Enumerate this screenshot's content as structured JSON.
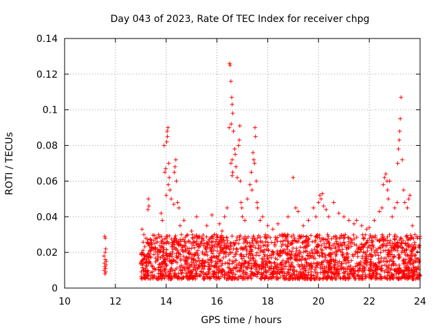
{
  "chart_data": {
    "type": "scatter",
    "title": "Day 043 of 2023, Rate Of TEC Index for receiver chpg",
    "xlabel": "GPS time / hours",
    "ylabel": "ROTI / TECUs",
    "xlim": [
      10,
      24
    ],
    "ylim": [
      0,
      0.14
    ],
    "x_ticks": [
      10,
      12,
      14,
      16,
      18,
      20,
      22,
      24
    ],
    "x_tick_labels": [
      "10",
      "12",
      "14",
      "16",
      "18",
      "20",
      "22",
      "24"
    ],
    "y_ticks": [
      0,
      0.02,
      0.04,
      0.06,
      0.08,
      0.1,
      0.12,
      0.14
    ],
    "y_tick_labels": [
      "0",
      "0.02",
      "0.04",
      "0.06",
      "0.08",
      "0.1",
      "0.12",
      "0.14"
    ],
    "grid": true,
    "marker": "+",
    "color": "#ff0000",
    "series": [
      {
        "name": "ROTI",
        "points": [
          [
            11.58,
            0.029
          ],
          [
            11.6,
            0.028
          ],
          [
            11.62,
            0.022
          ],
          [
            11.55,
            0.018
          ],
          [
            11.6,
            0.016
          ],
          [
            11.57,
            0.014
          ],
          [
            11.63,
            0.013
          ],
          [
            11.58,
            0.012
          ],
          [
            11.61,
            0.011
          ],
          [
            11.56,
            0.01
          ],
          [
            11.62,
            0.009
          ],
          [
            11.59,
            0.008
          ],
          [
            11.64,
            0.015
          ],
          [
            11.6,
            0.02
          ],
          [
            13.05,
            0.033
          ],
          [
            13.12,
            0.03
          ],
          [
            13.2,
            0.028
          ],
          [
            13.3,
            0.05
          ],
          [
            13.32,
            0.046
          ],
          [
            13.28,
            0.044
          ],
          [
            13.4,
            0.025
          ],
          [
            13.55,
            0.022
          ],
          [
            13.7,
            0.03
          ],
          [
            13.8,
            0.042
          ],
          [
            13.85,
            0.038
          ],
          [
            13.95,
            0.065
          ],
          [
            13.92,
            0.08
          ],
          [
            13.98,
            0.067
          ],
          [
            14.02,
            0.082
          ],
          [
            14.05,
            0.085
          ],
          [
            14.07,
            0.09
          ],
          [
            14.04,
            0.088
          ],
          [
            14.1,
            0.07
          ],
          [
            14.12,
            0.062
          ],
          [
            14.08,
            0.058
          ],
          [
            14.0,
            0.052
          ],
          [
            14.15,
            0.055
          ],
          [
            14.2,
            0.05
          ],
          [
            14.3,
            0.047
          ],
          [
            14.32,
            0.065
          ],
          [
            14.35,
            0.068
          ],
          [
            14.38,
            0.072
          ],
          [
            14.4,
            0.06
          ],
          [
            14.45,
            0.048
          ],
          [
            14.5,
            0.045
          ],
          [
            14.55,
            0.035
          ],
          [
            14.6,
            0.03
          ],
          [
            14.7,
            0.038
          ],
          [
            15.0,
            0.032
          ],
          [
            15.2,
            0.04
          ],
          [
            15.4,
            0.028
          ],
          [
            15.6,
            0.035
          ],
          [
            15.8,
            0.041
          ],
          [
            15.9,
            0.03
          ],
          [
            16.1,
            0.036
          ],
          [
            16.2,
            0.032
          ],
          [
            16.3,
            0.04
          ],
          [
            16.4,
            0.045
          ],
          [
            16.48,
            0.09
          ],
          [
            16.5,
            0.126
          ],
          [
            16.52,
            0.125
          ],
          [
            16.55,
            0.116
          ],
          [
            16.58,
            0.107
          ],
          [
            16.6,
            0.103
          ],
          [
            16.56,
            0.092
          ],
          [
            16.62,
            0.098
          ],
          [
            16.65,
            0.088
          ],
          [
            16.6,
            0.072
          ],
          [
            16.55,
            0.07
          ],
          [
            16.62,
            0.065
          ],
          [
            16.6,
            0.063
          ],
          [
            16.7,
            0.078
          ],
          [
            16.72,
            0.075
          ],
          [
            16.75,
            0.068
          ],
          [
            16.8,
            0.062
          ],
          [
            16.85,
            0.08
          ],
          [
            16.88,
            0.083
          ],
          [
            16.9,
            0.091
          ],
          [
            16.92,
            0.06
          ],
          [
            16.95,
            0.048
          ],
          [
            16.98,
            0.045
          ],
          [
            17.0,
            0.04
          ],
          [
            17.1,
            0.038
          ],
          [
            17.2,
            0.05
          ],
          [
            17.3,
            0.058
          ],
          [
            17.35,
            0.065
          ],
          [
            17.38,
            0.055
          ],
          [
            17.42,
            0.076
          ],
          [
            17.45,
            0.072
          ],
          [
            17.48,
            0.07
          ],
          [
            17.5,
            0.09
          ],
          [
            17.52,
            0.085
          ],
          [
            17.55,
            0.06
          ],
          [
            17.58,
            0.048
          ],
          [
            17.6,
            0.045
          ],
          [
            17.7,
            0.038
          ],
          [
            17.8,
            0.04
          ],
          [
            18.0,
            0.035
          ],
          [
            18.2,
            0.033
          ],
          [
            18.4,
            0.036
          ],
          [
            18.6,
            0.03
          ],
          [
            18.8,
            0.04
          ],
          [
            19.0,
            0.062
          ],
          [
            19.1,
            0.045
          ],
          [
            19.2,
            0.043
          ],
          [
            19.4,
            0.035
          ],
          [
            19.6,
            0.038
          ],
          [
            19.8,
            0.045
          ],
          [
            19.9,
            0.04
          ],
          [
            20.0,
            0.048
          ],
          [
            20.05,
            0.052
          ],
          [
            20.1,
            0.05
          ],
          [
            20.15,
            0.053
          ],
          [
            20.2,
            0.046
          ],
          [
            20.3,
            0.044
          ],
          [
            20.4,
            0.04
          ],
          [
            20.6,
            0.048
          ],
          [
            20.8,
            0.042
          ],
          [
            21.0,
            0.04
          ],
          [
            21.2,
            0.038
          ],
          [
            21.4,
            0.036
          ],
          [
            21.5,
            0.038
          ],
          [
            21.7,
            0.035
          ],
          [
            21.9,
            0.033
          ],
          [
            22.0,
            0.034
          ],
          [
            22.2,
            0.038
          ],
          [
            22.4,
            0.043
          ],
          [
            22.5,
            0.045
          ],
          [
            22.55,
            0.058
          ],
          [
            22.6,
            0.062
          ],
          [
            22.65,
            0.064
          ],
          [
            22.7,
            0.06
          ],
          [
            22.72,
            0.055
          ],
          [
            22.75,
            0.05
          ],
          [
            22.8,
            0.06
          ],
          [
            22.9,
            0.04
          ],
          [
            23.0,
            0.045
          ],
          [
            23.1,
            0.048
          ],
          [
            23.12,
            0.07
          ],
          [
            23.15,
            0.078
          ],
          [
            23.18,
            0.083
          ],
          [
            23.2,
            0.088
          ],
          [
            23.22,
            0.095
          ],
          [
            23.25,
            0.107
          ],
          [
            23.3,
            0.072
          ],
          [
            23.35,
            0.055
          ],
          [
            23.4,
            0.048
          ],
          [
            23.5,
            0.045
          ],
          [
            23.55,
            0.05
          ],
          [
            23.6,
            0.052
          ],
          [
            23.7,
            0.035
          ],
          [
            23.8,
            0.03
          ],
          [
            23.9,
            0.028
          ],
          [
            24.0,
            0.029
          ]
        ],
        "band": {
          "description": "dense cluster of points",
          "x_ranges": [
            [
              13.0,
              24.0
            ]
          ],
          "y_min": 0.005,
          "y_max": 0.03,
          "count": 2200
        }
      }
    ]
  }
}
